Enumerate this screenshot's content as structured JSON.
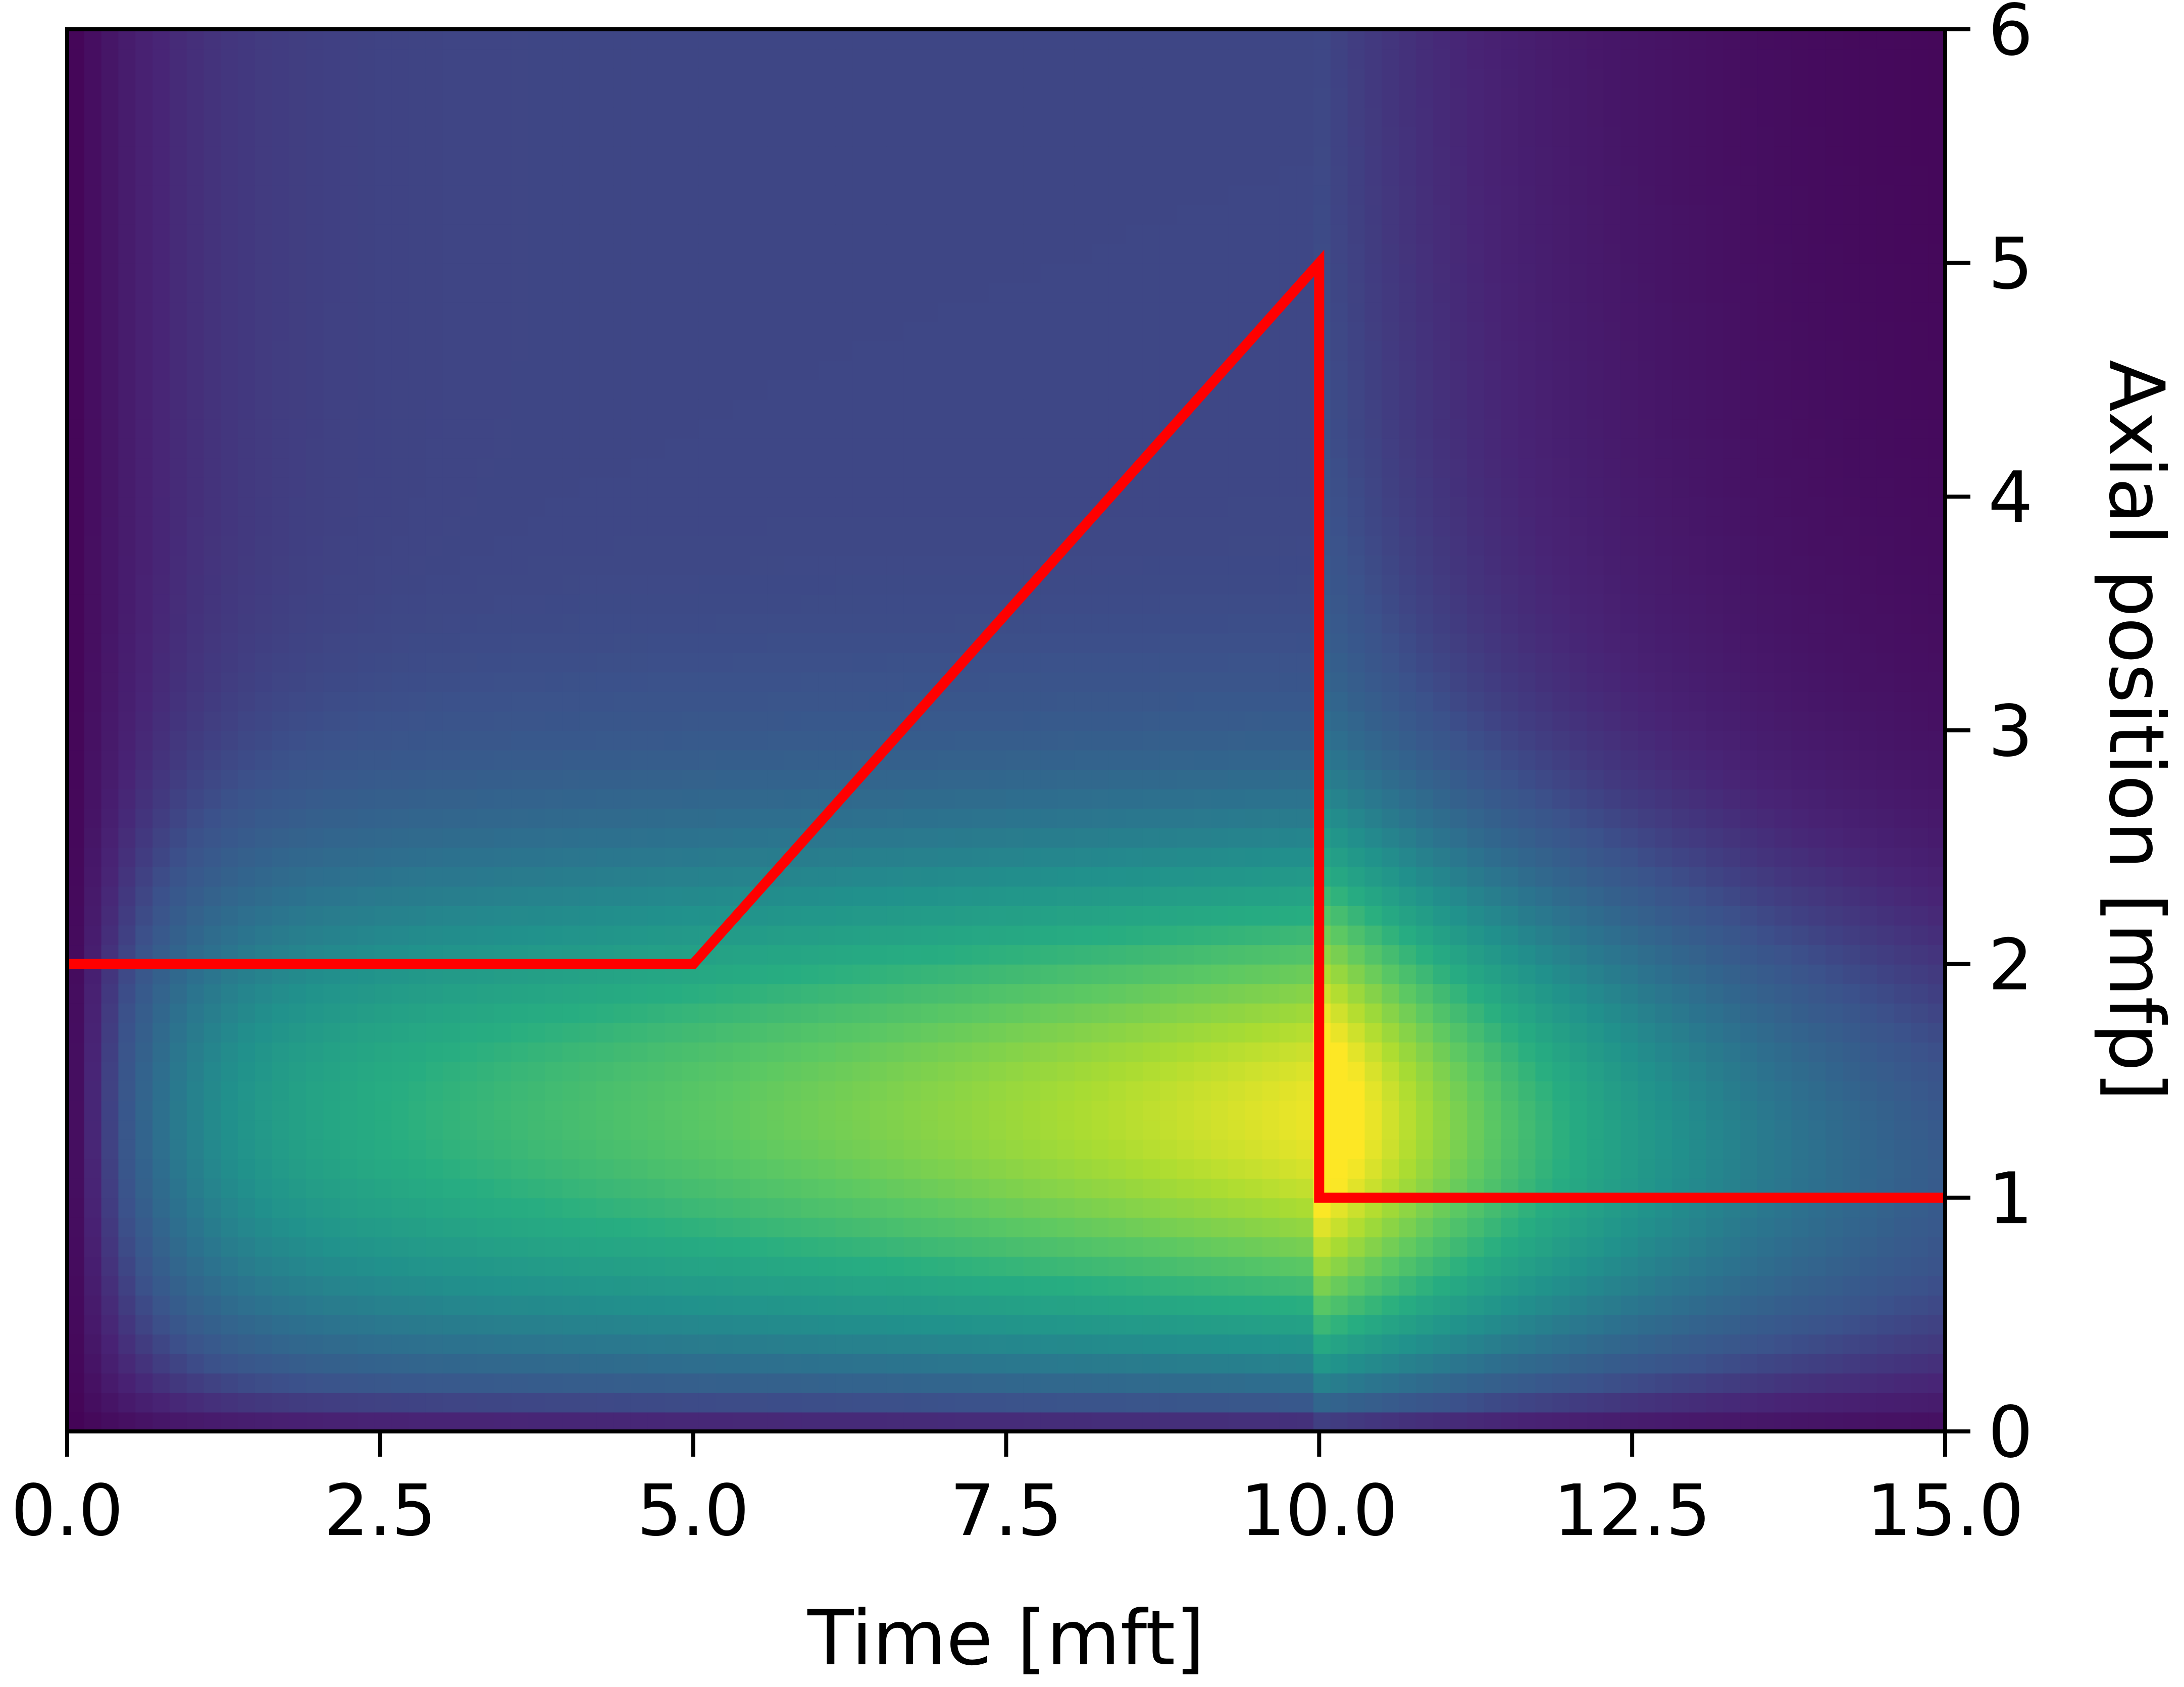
{
  "chart_data": {
    "type": "heatmap",
    "title": "",
    "xlabel": "Time [mft]",
    "ylabel": "Axial position [mfp]",
    "xlim": [
      0,
      15
    ],
    "ylim": [
      0,
      6
    ],
    "x_ticks": [
      "0.0",
      "2.5",
      "5.0",
      "7.5",
      "10.0",
      "12.5",
      "15.0"
    ],
    "y_ticks": [
      "0",
      "1",
      "2",
      "3",
      "4",
      "5",
      "6"
    ],
    "y_axis_side": "right",
    "colormap": "viridis",
    "grid": false,
    "series": [
      {
        "type": "line",
        "color": "#ff0000",
        "x": [
          0,
          5,
          10,
          10,
          15
        ],
        "y": [
          2,
          2,
          5,
          1,
          1
        ]
      }
    ]
  }
}
